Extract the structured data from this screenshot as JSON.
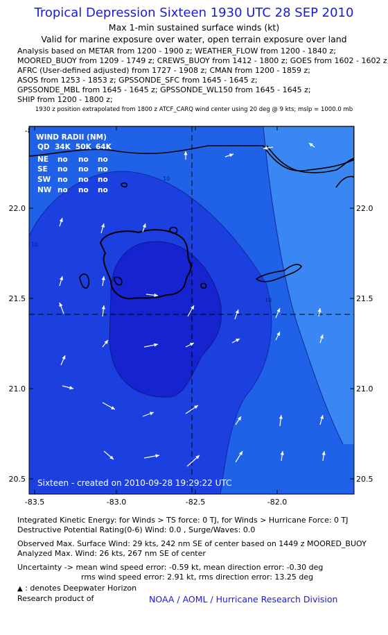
{
  "header": {
    "title": "Tropical Depression Sixteen 1930 UTC 28 SEP 2010",
    "subtitle": "Max 1-min sustained surface winds (kt)",
    "validity": "Valid for marine exposure over water, open terrain exposure over land"
  },
  "sources": [
    "Analysis based on METAR from 1200 - 1900 z; WEATHER_FLOW from 1200 - 1840 z;",
    "MOORED_BUOY from 1209 - 1749 z; CREWS_BUOY from 1412 - 1800 z; GOES from 1602 - 1602 z;",
    "AFRC (User-defined adjusted) from 1727 - 1908 z; CMAN from 1200 - 1859 z;",
    "ASOS from 1253 - 1853 z; GPSSONDE_SFC from 1645 - 1645 z;",
    "GPSSONDE_MBL from 1645 - 1645 z; GPSSONDE_WL150 from 1645 - 1645 z;",
    "SHIP from 1200 - 1800 z;"
  ],
  "position_note": "1930 z position extrapolated from 1800 z ATCF_CARQ wind center using 20 deg @ 9 kts; mslp = 1000.0 mb",
  "map": {
    "longitudes": [
      "-83.5",
      "-83.0",
      "-82.5",
      "-82.0"
    ],
    "latitudes": [
      "22.0",
      "21.5",
      "21.0",
      "20.5"
    ],
    "center": {
      "lon": -82.5,
      "lat": 21.42
    },
    "contour_labels": [
      "10",
      "10",
      "10"
    ],
    "colors": {
      "band_0_10": "#1f62e8",
      "band_10_20": "#1c3fe0",
      "band_20_plus": "#1524cf",
      "outer_low": "#3a86f2",
      "arrow": "#ffffff",
      "crosshair": "#000000"
    },
    "wind_radii": {
      "title": "WIND RADII (NM)",
      "header": [
        "QD",
        "34K",
        "50K",
        "64K"
      ],
      "rows": [
        [
          "NE",
          "no",
          "no",
          "no"
        ],
        [
          "SE",
          "no",
          "no",
          "no"
        ],
        [
          "SW",
          "no",
          "no",
          "no"
        ],
        [
          "NW",
          "no",
          "no",
          "no"
        ]
      ]
    },
    "credit": "Sixteen - created on 2010-09-28 19:29:22 UTC"
  },
  "footer": {
    "ike": "Integrated Kinetic Energy:  for Winds > TS force: 0 TJ,  for Winds > Hurricane Force: 0 TJ",
    "dpr": "Destructive Potential Rating(0-6)   Wind: 0.0 , Surge/Waves: 0.0",
    "observed": "Observed Max. Surface Wind: 29 kts, 242 nm SE of center based on 1449 z MOORED_BUOY",
    "analyzed": "Analyzed Max. Wind: 26 kts, 267 nm SE of center",
    "uncertainty": "Uncertainty -> mean wind speed error:  -0.59 kt,   mean direction error:  -0.30 deg",
    "rms": "rms wind speed error: 2.91 kt,   rms direction error: 13.25 deg",
    "legend": ": denotes Deepwater Horizon",
    "research": "Research product of",
    "org": "NOAA / AOML / Hurricane Research Division"
  }
}
